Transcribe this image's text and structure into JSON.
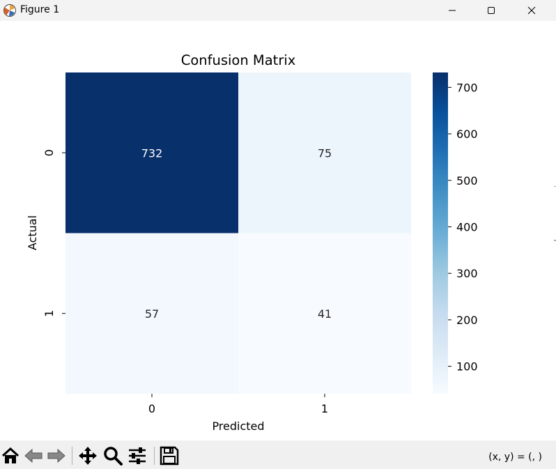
{
  "window": {
    "title": "Figure 1"
  },
  "toolbar": {
    "buttons": [
      "home-icon",
      "back-icon",
      "forward-icon",
      "pan-icon",
      "zoom-icon",
      "configure-subplots-icon",
      "save-icon"
    ],
    "coords": "(x, y) = (, )"
  },
  "colors": {
    "cmap": "Blues",
    "cmap_low": "#f7fbff",
    "cmap_high": "#08306b",
    "annot_dark_text": "#262626",
    "annot_light_text": "#ffffff"
  },
  "chart_data": {
    "type": "heatmap",
    "title": "Confusion Matrix",
    "xlabel": "Predicted",
    "ylabel": "Actual",
    "x_categories": [
      "0",
      "1"
    ],
    "y_categories": [
      "0",
      "1"
    ],
    "values": [
      [
        732,
        75
      ],
      [
        57,
        41
      ]
    ],
    "colorbar": {
      "ticks": [
        "100",
        "200",
        "300",
        "400",
        "500",
        "600",
        "700"
      ],
      "range": [
        41,
        732
      ]
    },
    "grid": false
  }
}
